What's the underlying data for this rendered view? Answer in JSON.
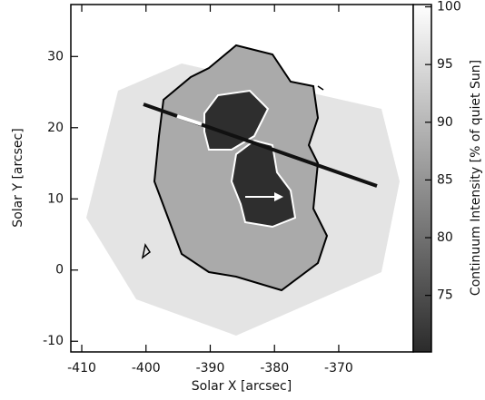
{
  "chart_data": {
    "type": "image",
    "xlabel": "Solar X [arcsec]",
    "ylabel": "Solar Y [arcsec]",
    "xlim": [
      -411.7,
      -358.4
    ],
    "xticks": [
      -410,
      -400,
      -390,
      -380,
      -370
    ],
    "ylim": [
      -11.5,
      37.3
    ],
    "yticks": [
      -10,
      0,
      10,
      20,
      30
    ],
    "colorbar": {
      "label": "Continuum Intensity [% of quiet Sun]",
      "lim": [
        70.1,
        100.2
      ],
      "ticks": [
        75,
        80,
        85,
        90,
        95,
        100
      ],
      "colors": [
        "#2b2b2b",
        "#ffffff"
      ]
    }
  }
}
